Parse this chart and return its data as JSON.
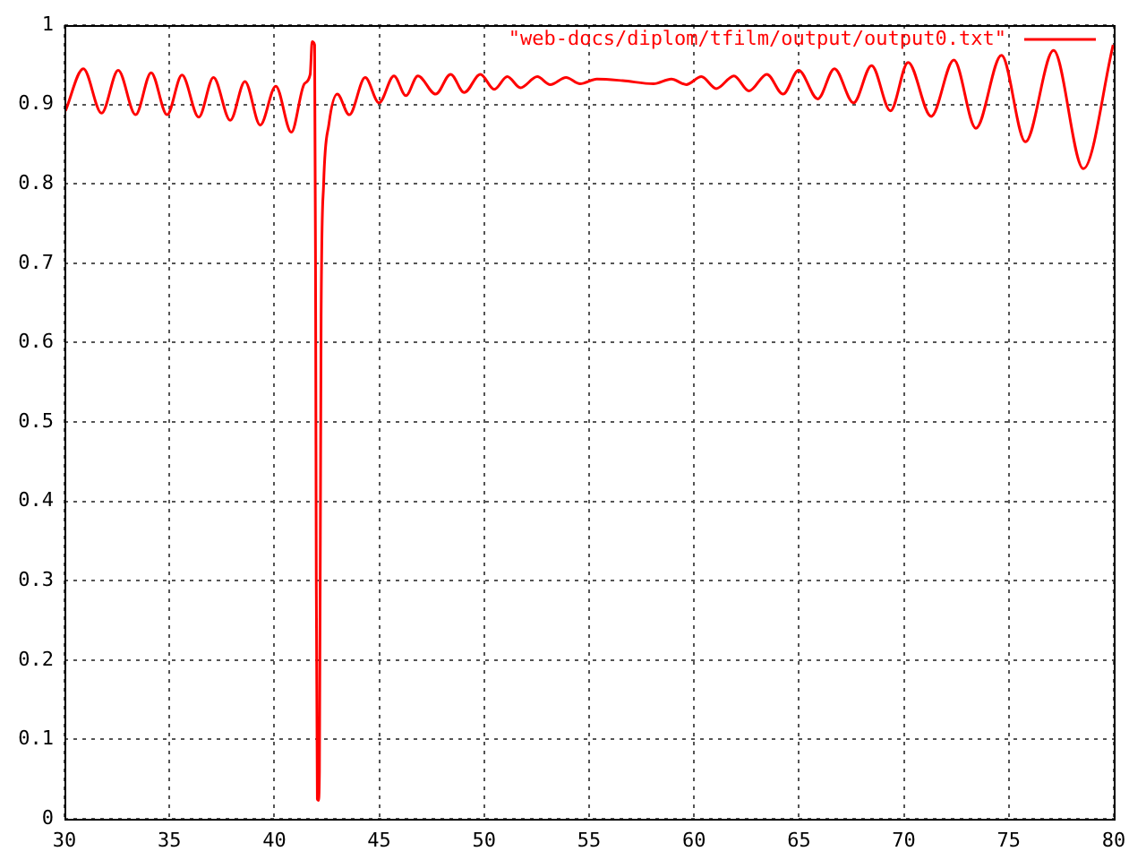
{
  "chart_data": {
    "type": "line",
    "x": [
      30.05,
      30.9,
      31.77,
      32.56,
      33.39,
      34.13,
      34.89,
      35.6,
      36.4,
      37.1,
      37.9,
      38.6,
      39.33,
      40.07,
      40.81,
      41.43,
      41.71,
      41.8,
      41.92,
      41.97,
      42.0,
      42.05,
      42.1,
      42.15,
      42.23,
      42.35,
      42.6,
      43.0,
      43.57,
      44.33,
      44.99,
      45.7,
      46.27,
      46.84,
      47.69,
      48.4,
      49.05,
      49.82,
      50.48,
      51.1,
      51.73,
      52.53,
      53.15,
      53.9,
      54.57,
      55.37,
      56.6,
      58.07,
      58.92,
      59.63,
      60.35,
      61.06,
      61.9,
      62.62,
      63.47,
      64.24,
      64.98,
      65.9,
      66.69,
      67.6,
      68.46,
      69.36,
      70.2,
      71.3,
      72.38,
      73.43,
      74.65,
      75.79,
      77.13,
      78.55,
      79.97
    ],
    "series": [
      {
        "name": "\"web-docs/diplom/tfilm/output/output0.txt\"",
        "color": "#ff0000",
        "values": [
          0.892,
          0.945,
          0.889,
          0.943,
          0.887,
          0.94,
          0.887,
          0.937,
          0.884,
          0.934,
          0.88,
          0.929,
          0.874,
          0.923,
          0.865,
          0.926,
          0.938,
          0.979,
          0.975,
          0.63,
          0.3,
          0.025,
          0.023,
          0.06,
          0.633,
          0.8,
          0.875,
          0.913,
          0.887,
          0.934,
          0.902,
          0.936,
          0.911,
          0.936,
          0.913,
          0.938,
          0.915,
          0.938,
          0.919,
          0.935,
          0.921,
          0.935,
          0.925,
          0.934,
          0.926,
          0.932,
          0.93,
          0.926,
          0.932,
          0.925,
          0.935,
          0.92,
          0.936,
          0.917,
          0.938,
          0.913,
          0.943,
          0.907,
          0.945,
          0.902,
          0.949,
          0.892,
          0.953,
          0.885,
          0.956,
          0.87,
          0.962,
          0.853,
          0.968,
          0.819,
          0.975
        ]
      }
    ],
    "xlim": [
      30,
      80
    ],
    "xticks": [
      30,
      35,
      40,
      45,
      50,
      55,
      60,
      65,
      70,
      75,
      80
    ],
    "ylim": [
      0,
      1
    ],
    "yticks": [
      0,
      0.1,
      0.2,
      0.3,
      0.4,
      0.5,
      0.6,
      0.7,
      0.8,
      0.9,
      1
    ],
    "grid": true,
    "legend": "top right",
    "marker": "none",
    "line_style": "solid"
  }
}
